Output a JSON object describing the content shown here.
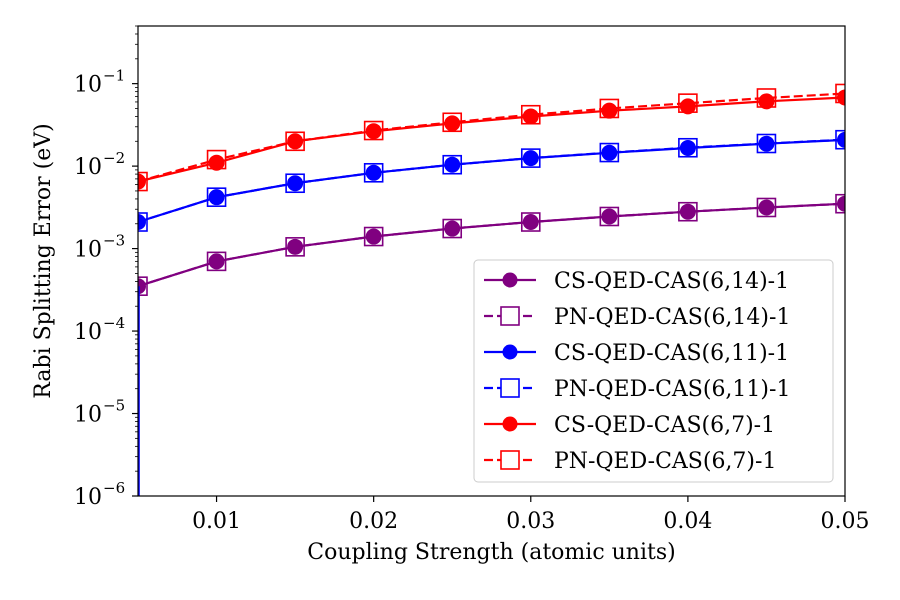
{
  "chart_data": {
    "type": "line",
    "title": "",
    "xlabel": "Coupling Strength (atomic units)",
    "ylabel": "Rabi Splitting Error (eV)",
    "xlim": [
      0.005,
      0.05
    ],
    "ylim": [
      1e-06,
      0.5
    ],
    "yscale": "log",
    "grid": false,
    "legend_position": "lower-right",
    "x": [
      0.005,
      0.01,
      0.015,
      0.02,
      0.025,
      0.03,
      0.035,
      0.04,
      0.045,
      0.05
    ],
    "xticks": [
      0.01,
      0.02,
      0.03,
      0.04,
      0.05
    ],
    "xtick_labels": [
      "0.01",
      "0.02",
      "0.03",
      "0.04",
      "0.05"
    ],
    "yticks": [
      1e-06,
      1e-05,
      0.0001,
      0.001,
      0.01,
      0.1
    ],
    "ytick_labels": [
      {
        "base": "10",
        "exp": "−6"
      },
      {
        "base": "10",
        "exp": "−5"
      },
      {
        "base": "10",
        "exp": "−4"
      },
      {
        "base": "10",
        "exp": "−3"
      },
      {
        "base": "10",
        "exp": "−2"
      },
      {
        "base": "10",
        "exp": "−1"
      }
    ],
    "series": [
      {
        "name": "CS-QED-CAS(6,14)-1",
        "color": "#800080",
        "linestyle": "solid",
        "marker": "filled-circle",
        "values": [
          0.00035,
          0.0007,
          0.00105,
          0.0014,
          0.00175,
          0.0021,
          0.00245,
          0.0028,
          0.00315,
          0.0035
        ]
      },
      {
        "name": "PN-QED-CAS(6,14)-1",
        "color": "#800080",
        "linestyle": "dashed",
        "marker": "open-square",
        "values": [
          0.00035,
          0.0007,
          0.00105,
          0.0014,
          0.00175,
          0.0021,
          0.00245,
          0.0028,
          0.00315,
          0.0035
        ]
      },
      {
        "name": "CS-QED-CAS(6,11)-1",
        "color": "#0000ff",
        "linestyle": "solid",
        "marker": "filled-circle",
        "values": [
          0.0021,
          0.0042,
          0.0062,
          0.0083,
          0.0104,
          0.0125,
          0.0145,
          0.0166,
          0.0187,
          0.0208
        ]
      },
      {
        "name": "PN-QED-CAS(6,11)-1",
        "color": "#0000ff",
        "linestyle": "dashed",
        "marker": "open-square",
        "values": [
          0.0021,
          0.0042,
          0.0062,
          0.0083,
          0.0104,
          0.0125,
          0.0146,
          0.0167,
          0.0188,
          0.0209
        ]
      },
      {
        "name": "CS-QED-CAS(6,7)-1",
        "color": "#ff0000",
        "linestyle": "solid",
        "marker": "filled-circle",
        "values": [
          0.0065,
          0.011,
          0.02,
          0.0265,
          0.033,
          0.04,
          0.047,
          0.053,
          0.061,
          0.068
        ]
      },
      {
        "name": "PN-QED-CAS(6,7)-1",
        "color": "#ff0000",
        "linestyle": "dashed",
        "marker": "open-square",
        "values": [
          0.0065,
          0.012,
          0.02,
          0.027,
          0.034,
          0.042,
          0.05,
          0.058,
          0.067,
          0.076
        ]
      }
    ]
  }
}
